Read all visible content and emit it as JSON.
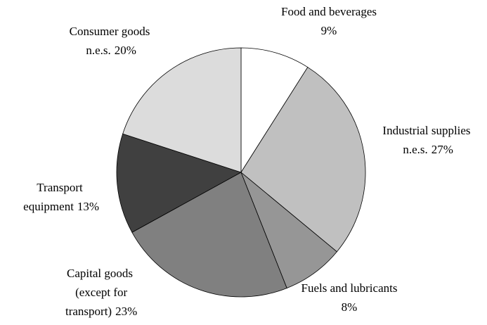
{
  "chart_data": {
    "type": "pie",
    "categories": [
      "Food and beverages",
      "Industrial supplies n.e.s.",
      "Fuels and lubricants",
      "Capital goods (except for transport)",
      "Transport equipment",
      "Consumer goods n.e.s."
    ],
    "values": [
      9,
      27,
      8,
      23,
      13,
      20
    ],
    "value_labels": [
      "9%",
      "27%",
      "8%",
      "23%",
      "13%",
      "20%"
    ],
    "colors": [
      "#ffffff",
      "#c0c0c0",
      "#969696",
      "#808080",
      "#404040",
      "#dcdcdc"
    ]
  }
}
